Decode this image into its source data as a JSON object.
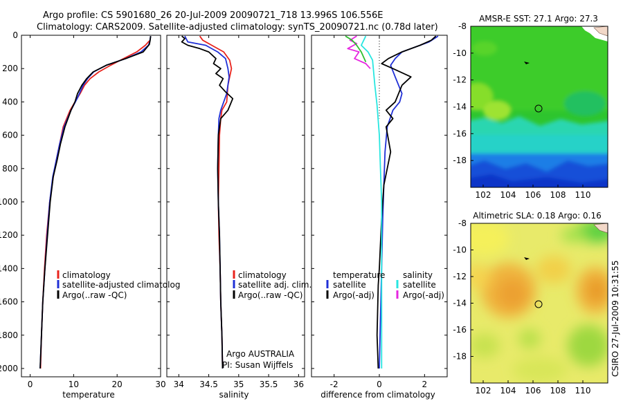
{
  "header": {
    "title_line1": "Argo profile: CS 5901680_26 20-Jul-2009 20090721_718 13.996S 106.556E",
    "title_line2": "Climatology: CARS2009. Satellite-adjusted climatology: synTS_20090721.nc (0.78d later)"
  },
  "footer": {
    "stamp": "CSIRO 27-Jul-2009 10:31:55"
  },
  "colors": {
    "climatology": "#e8231c",
    "satellite": "#1f2fd6",
    "argo": "#000000",
    "salinity_satellite": "#27e6e0",
    "salinity_argo": "#e627e0"
  },
  "chart_data": [
    {
      "type": "line",
      "id": "temperature",
      "xlabel": "temperature",
      "ylabel": "",
      "xlim": [
        -2,
        30
      ],
      "ylim": [
        2050,
        0
      ],
      "xticks": [
        "0",
        "10",
        "20",
        "30"
      ],
      "yticks": [
        "0",
        "200",
        "400",
        "600",
        "800",
        "1000",
        "1200",
        "1400",
        "1600",
        "1800",
        "2000"
      ],
      "legend": [
        "climatology",
        "satellite-adjusted climatolog",
        "Argo(..raw -QC)"
      ],
      "legend_position": "center-right",
      "series": [
        {
          "name": "climatology",
          "color": "#e8231c",
          "x": [
            27.6,
            27.2,
            26.5,
            24.5,
            21.5,
            18.5,
            15.8,
            13.8,
            12.5,
            11.5,
            10.3,
            9.2,
            7.6,
            6.8,
            6.0,
            5.3,
            4.5,
            3.8,
            3.3,
            2.9,
            2.6,
            2.4
          ],
          "y": [
            30,
            40,
            60,
            100,
            140,
            180,
            220,
            260,
            300,
            350,
            400,
            450,
            550,
            650,
            750,
            850,
            1000,
            1200,
            1400,
            1600,
            1800,
            2000
          ]
        },
        {
          "name": "satellite-adjusted climatolog",
          "color": "#1f2fd6",
          "x": [
            27.7,
            27.5,
            27.2,
            25.5,
            22.0,
            17.5,
            14.6,
            13.2,
            12.2,
            10.8,
            9.4,
            7.8,
            6.8,
            6.0,
            5.2,
            4.5,
            3.9,
            3.4,
            2.9,
            2.6,
            2.3
          ],
          "y": [
            5,
            40,
            60,
            100,
            140,
            180,
            220,
            260,
            300,
            380,
            450,
            550,
            650,
            750,
            850,
            1000,
            1200,
            1400,
            1600,
            1800,
            2000
          ]
        },
        {
          "name": "Argo(..raw -QC)",
          "color": "#000000",
          "x": [
            27.7,
            27.6,
            27.4,
            26.0,
            22.0,
            17.5,
            14.5,
            13.0,
            11.9,
            10.9,
            10.3,
            9.4,
            8.0,
            7.0,
            6.2,
            5.3,
            4.6,
            4.0,
            3.4,
            2.9,
            2.6,
            2.3
          ],
          "y": [
            5,
            30,
            55,
            100,
            140,
            180,
            220,
            260,
            300,
            350,
            400,
            450,
            550,
            650,
            750,
            850,
            1000,
            1200,
            1400,
            1600,
            1800,
            2000
          ]
        }
      ]
    },
    {
      "type": "line",
      "id": "salinity",
      "xlabel": "salinity",
      "ylabel": "",
      "xlim": [
        33.8,
        36.1
      ],
      "ylim": [
        2050,
        0
      ],
      "xticks": [
        "34",
        "34.5",
        "35",
        "35.5",
        "36"
      ],
      "legend": [
        "climatology",
        "satellite adj. clim.",
        "Argo(..raw -QC)"
      ],
      "legend_position": "lower-right",
      "annotations": [
        "Argo AUSTRALIA",
        "PI: Susan Wijffels"
      ],
      "series": [
        {
          "name": "climatology",
          "color": "#e8231c",
          "x": [
            34.35,
            34.4,
            34.55,
            34.75,
            34.85,
            34.88,
            34.85,
            34.82,
            34.8,
            34.72,
            34.7,
            34.68,
            34.67,
            34.66,
            34.67,
            34.69,
            34.7,
            34.71,
            34.72,
            34.73
          ],
          "y": [
            5,
            30,
            60,
            100,
            150,
            200,
            250,
            300,
            400,
            450,
            500,
            600,
            800,
            1000,
            1200,
            1400,
            1600,
            1700,
            1800,
            2000
          ]
        },
        {
          "name": "satellite adj. clim.",
          "color": "#1f2fd6",
          "x": [
            34.1,
            34.15,
            34.45,
            34.65,
            34.78,
            34.82,
            34.84,
            34.8,
            34.7,
            34.67,
            34.66,
            34.65,
            34.66,
            34.68,
            34.69,
            34.7,
            34.71,
            34.72,
            34.73
          ],
          "y": [
            5,
            40,
            60,
            100,
            140,
            200,
            250,
            350,
            450,
            500,
            600,
            800,
            1000,
            1200,
            1400,
            1600,
            1700,
            1800,
            2000
          ]
        },
        {
          "name": "Argo(..raw -QC)",
          "color": "#000000",
          "x": [
            34.05,
            34.1,
            34.05,
            34.15,
            34.35,
            34.5,
            34.62,
            34.58,
            34.7,
            34.62,
            34.74,
            34.68,
            34.78,
            34.9,
            34.82,
            34.7,
            34.66,
            34.65,
            34.66,
            34.68,
            34.7,
            34.72,
            34.73
          ],
          "y": [
            5,
            20,
            40,
            60,
            80,
            100,
            140,
            170,
            200,
            230,
            260,
            300,
            340,
            380,
            450,
            500,
            600,
            800,
            1000,
            1200,
            1600,
            1800,
            2000
          ]
        }
      ]
    },
    {
      "type": "line",
      "id": "difference",
      "xlabel": "difference from climatology",
      "ylabel": "",
      "xlim": [
        -3,
        3
      ],
      "ylim": [
        2050,
        0
      ],
      "xticks": [
        "-2",
        "0",
        "2"
      ],
      "zero_line": "dotted",
      "legend": [
        "temperature",
        "satellite",
        "Argo(-adj)",
        "salinity",
        "satellite",
        "Argo(-adj)"
      ],
      "legend_position": "lower-center",
      "series": [
        {
          "name": "temperature satellite",
          "color": "#1f2fd6",
          "x": [
            2.6,
            2.2,
            1.8,
            1.4,
            1.0,
            0.7,
            0.5,
            0.7,
            1.0,
            0.9,
            0.6,
            0.35,
            0.25,
            0.2,
            0.15,
            0.1,
            0.05,
            0.0
          ],
          "y": [
            5,
            40,
            60,
            80,
            100,
            140,
            180,
            250,
            350,
            400,
            450,
            550,
            700,
            900,
            1100,
            1400,
            1700,
            2000
          ]
        },
        {
          "name": "temperature Argo(-adj)",
          "color": "#000000",
          "x": [
            2.5,
            2.3,
            1.8,
            1.0,
            0.4,
            0.1,
            0.6,
            1.4,
            1.0,
            0.7,
            0.3,
            0.6,
            0.3,
            0.5,
            0.2,
            0.1,
            0.0,
            -0.05,
            -0.1,
            -0.05
          ],
          "y": [
            5,
            30,
            60,
            100,
            140,
            170,
            200,
            250,
            300,
            400,
            450,
            500,
            550,
            700,
            900,
            1100,
            1400,
            1500,
            1800,
            2000
          ]
        },
        {
          "name": "salinity satellite",
          "color": "#27e6e0",
          "x": [
            -0.6,
            -0.8,
            -0.5,
            -0.3,
            -0.2,
            -0.1,
            0.0,
            0.05,
            0.1,
            0.1,
            0.1
          ],
          "y": [
            5,
            60,
            100,
            150,
            300,
            420,
            600,
            800,
            1000,
            1500,
            2000
          ]
        },
        {
          "name": "salinity Argo(-adj)",
          "color": "#e627e0",
          "x": [
            -1.0,
            -1.3,
            -1.0,
            -1.4,
            -0.9,
            -1.1,
            -0.6,
            -0.4
          ],
          "y": [
            5,
            30,
            50,
            80,
            100,
            140,
            170,
            200
          ]
        },
        {
          "name": "salinity Argo(-adj) green",
          "color": "#2fbf2f",
          "x": [
            -1.5,
            -1.2,
            -1.0,
            -0.8,
            -0.6
          ],
          "y": [
            5,
            30,
            60,
            100,
            160
          ]
        }
      ]
    },
    {
      "type": "heatmap",
      "id": "sst_map",
      "title": "AMSR-E SST: 27.1 Argo: 27.3",
      "xlim": [
        101,
        112
      ],
      "ylim": [
        -20,
        -8
      ],
      "xticks": [
        "102",
        "104",
        "106",
        "108",
        "110"
      ],
      "yticks": [
        "-8",
        "-10",
        "-12",
        "-14",
        "-16",
        "-18"
      ],
      "argo_position": [
        106.556,
        -13.996
      ]
    },
    {
      "type": "heatmap",
      "id": "sla_map",
      "title": "Altimetric SLA: 0.18 Argo: 0.16",
      "xlim": [
        101,
        112
      ],
      "ylim": [
        -20,
        -8
      ],
      "xticks": [
        "102",
        "104",
        "106",
        "108",
        "110"
      ],
      "yticks": [
        "-8",
        "-10",
        "-12",
        "-14",
        "-16",
        "-18"
      ],
      "argo_position": [
        106.556,
        -13.996
      ]
    }
  ]
}
